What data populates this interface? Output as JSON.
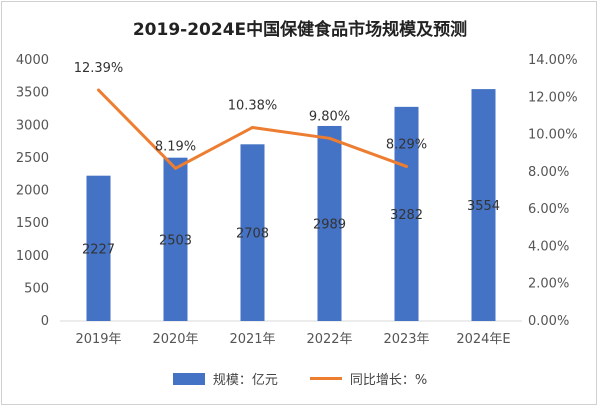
{
  "chart_data": {
    "type": "bar+line",
    "title": "2019-2024E中国保健食品市场规模及预测",
    "categories": [
      "2019年",
      "2020年",
      "2021年",
      "2022年",
      "2023年",
      "2024年E"
    ],
    "series": [
      {
        "name": "规模：亿元",
        "type": "bar",
        "axis": "left",
        "color": "#4472C4",
        "values": [
          2227,
          2503,
          2708,
          2989,
          3282,
          3554
        ],
        "labels": [
          "2227",
          "2503",
          "2708",
          "2989",
          "3282",
          "3554"
        ]
      },
      {
        "name": "同比增长：%",
        "type": "line",
        "axis": "right",
        "color": "#ED7D31",
        "values": [
          12.39,
          8.19,
          10.38,
          9.8,
          8.29,
          null
        ],
        "labels": [
          "12.39%",
          "8.19%",
          "10.38%",
          "9.80%",
          "8.29%",
          ""
        ]
      }
    ],
    "y_left": {
      "min": 0,
      "max": 4000,
      "ticks": [
        "0",
        "500",
        "1000",
        "1500",
        "2000",
        "2500",
        "3000",
        "3500",
        "4000"
      ]
    },
    "y_right": {
      "min": 0,
      "max": 14,
      "ticks": [
        "0.00%",
        "2.00%",
        "4.00%",
        "6.00%",
        "8.00%",
        "10.00%",
        "12.00%",
        "14.00%"
      ]
    },
    "grid": false,
    "legend": "bottom"
  }
}
